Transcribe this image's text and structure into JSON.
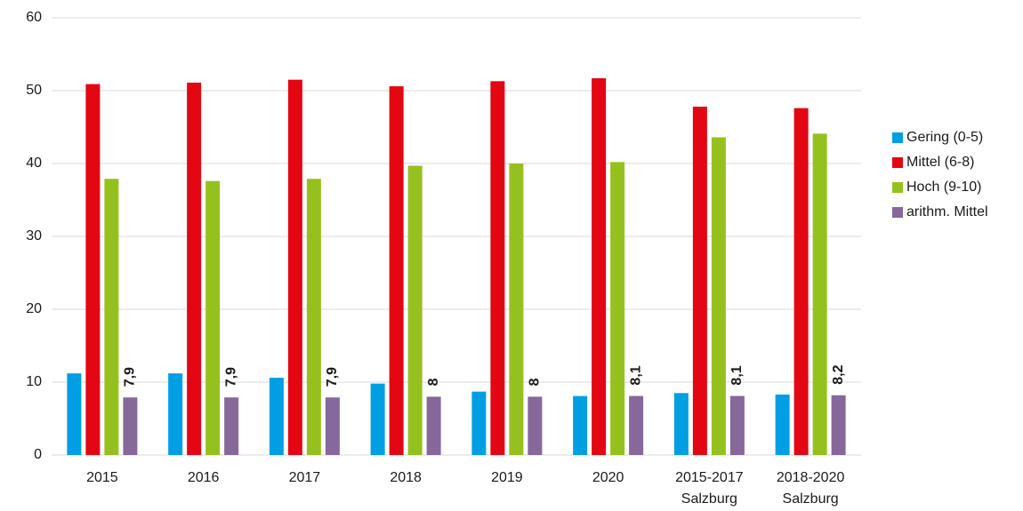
{
  "chart_data": {
    "type": "bar",
    "categories": [
      "2015",
      "2016",
      "2017",
      "2018",
      "2019",
      "2020",
      [
        "2015-2017",
        "Salzburg"
      ],
      [
        "2018-2020",
        "Salzburg"
      ]
    ],
    "series": [
      {
        "name": "Gering (0-5)",
        "color": "#009fe3",
        "values": [
          11.2,
          11.2,
          10.6,
          9.8,
          8.7,
          8.1,
          8.5,
          8.3
        ]
      },
      {
        "name": "Mittel (6-8)",
        "color": "#e30613",
        "values": [
          50.9,
          51.1,
          51.5,
          50.6,
          51.3,
          51.7,
          47.8,
          47.6
        ]
      },
      {
        "name": "Hoch (9-10)",
        "color": "#95c11f",
        "values": [
          37.9,
          37.6,
          37.9,
          39.7,
          40.0,
          40.2,
          43.6,
          44.1
        ]
      },
      {
        "name": "arithm. Mittel",
        "color": "#86689a",
        "values": [
          7.9,
          7.9,
          7.9,
          8,
          8,
          8.1,
          8.1,
          8.2
        ],
        "value_labels": [
          "7,9",
          "7,9",
          "7,9",
          "8",
          "8",
          "8,1",
          "8,1",
          "8,2"
        ]
      }
    ],
    "ylim": [
      0,
      60
    ],
    "yticks": [
      0,
      10,
      20,
      30,
      40,
      50,
      60
    ],
    "grid": true,
    "legend": "right"
  }
}
